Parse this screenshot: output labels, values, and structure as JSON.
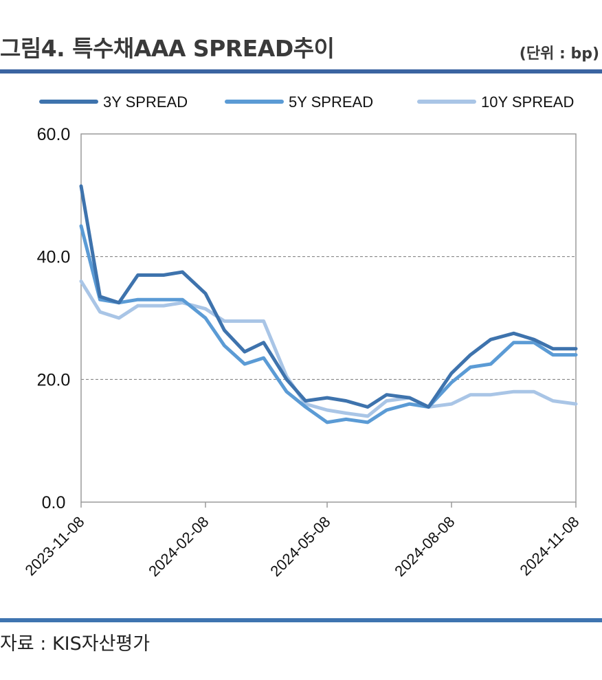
{
  "header": {
    "title": "그림4. 특수채AAA SPREAD추이",
    "unit": "(단위 : bp)"
  },
  "footer": {
    "source": "자료 : KIS자산평가"
  },
  "chart_data": {
    "type": "line",
    "title": "그림4. 특수채AAA SPREAD추이",
    "xlabel": "",
    "ylabel": "",
    "ylim": [
      0,
      60
    ],
    "yticks": [
      "0.0",
      "20.0",
      "40.0",
      "60.0"
    ],
    "xlim": [
      "2023-11-08",
      "2024-11-08"
    ],
    "xticks": [
      "2023-11-08",
      "2024-02-08",
      "2024-05-08",
      "2024-08-08",
      "2024-11-08"
    ],
    "grid": "horizontal dashed at 20 and 40",
    "legend_position": "top",
    "x": [
      "2023-11-08",
      "2023-11-22",
      "2023-12-06",
      "2023-12-20",
      "2024-01-08",
      "2024-01-22",
      "2024-02-08",
      "2024-02-22",
      "2024-03-08",
      "2024-03-22",
      "2024-04-08",
      "2024-04-22",
      "2024-05-08",
      "2024-05-22",
      "2024-06-07",
      "2024-06-21",
      "2024-07-08",
      "2024-07-22",
      "2024-08-08",
      "2024-08-22",
      "2024-09-06",
      "2024-09-23",
      "2024-10-08",
      "2024-10-22",
      "2024-11-08"
    ],
    "series": [
      {
        "name": "3Y SPREAD",
        "color": "#3e73ad",
        "values": [
          51.5,
          33.5,
          32.5,
          37.0,
          37.0,
          37.5,
          34.0,
          28.0,
          24.5,
          26.0,
          20.0,
          16.5,
          17.0,
          16.5,
          15.5,
          17.5,
          17.0,
          15.5,
          21.0,
          24.0,
          26.5,
          27.5,
          26.5,
          25.0,
          25.0
        ]
      },
      {
        "name": "5Y SPREAD",
        "color": "#5b9bd5",
        "values": [
          45.0,
          33.0,
          32.5,
          33.0,
          33.0,
          33.0,
          30.0,
          25.5,
          22.5,
          23.5,
          18.0,
          15.5,
          13.0,
          13.5,
          13.0,
          15.0,
          16.0,
          15.5,
          19.5,
          22.0,
          22.5,
          26.0,
          26.0,
          24.0,
          24.0
        ]
      },
      {
        "name": "10Y SPREAD",
        "color": "#a9c5e6",
        "values": [
          36.0,
          31.0,
          30.0,
          32.0,
          32.0,
          32.5,
          31.5,
          29.5,
          29.5,
          29.5,
          20.5,
          16.0,
          15.0,
          14.5,
          14.0,
          16.5,
          17.0,
          15.5,
          16.0,
          17.5,
          17.5,
          18.0,
          18.0,
          16.5,
          16.0
        ]
      }
    ]
  }
}
